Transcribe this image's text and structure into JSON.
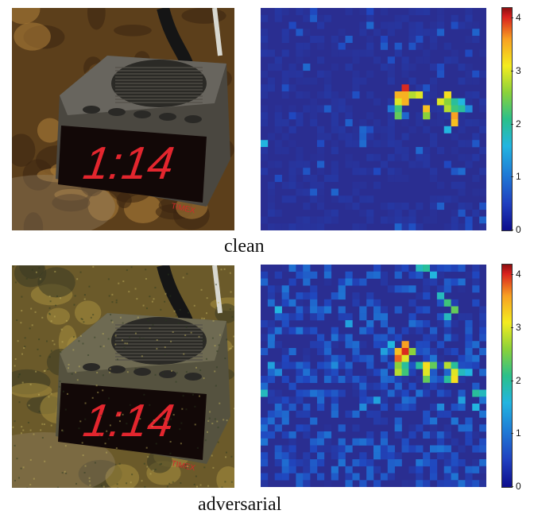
{
  "panels": [
    {
      "caption": "clean",
      "clock_display": "1:14",
      "brand": "TIMEX",
      "colorbar_ticks": [
        "4",
        "3",
        "2",
        "1",
        "0"
      ],
      "heat_cells": [
        [
          20,
          11,
          4.0
        ],
        [
          20,
          12,
          3.5
        ],
        [
          19,
          12,
          3.5
        ],
        [
          21,
          12,
          2.8
        ],
        [
          19,
          13,
          3.0
        ],
        [
          20,
          13,
          3.5
        ],
        [
          19,
          14,
          2.2
        ],
        [
          19,
          15,
          2.4
        ],
        [
          22,
          12,
          3.0
        ],
        [
          26,
          12,
          3.2
        ],
        [
          25,
          13,
          3.0
        ],
        [
          26,
          13,
          2.6
        ],
        [
          27,
          13,
          2.0
        ],
        [
          28,
          13,
          1.6
        ],
        [
          23,
          14,
          3.4
        ],
        [
          26,
          14,
          2.8
        ],
        [
          27,
          14,
          2.2
        ],
        [
          28,
          14,
          2.0
        ],
        [
          23,
          15,
          2.6
        ],
        [
          27,
          15,
          3.6
        ],
        [
          27,
          16,
          3.4
        ],
        [
          26,
          17,
          1.6
        ],
        [
          0,
          19,
          1.6
        ],
        [
          18,
          14,
          1.0
        ],
        [
          29,
          14,
          1.2
        ],
        [
          5,
          3,
          0.7
        ],
        [
          3,
          11,
          0.6
        ],
        [
          13,
          12,
          0.6
        ],
        [
          17,
          4,
          0.5
        ],
        [
          30,
          9,
          0.6
        ]
      ],
      "heat_noise": 0.2,
      "photo_variant": "clean"
    },
    {
      "caption": "adversarial",
      "clock_display": "1:14",
      "brand": "TIMEX",
      "colorbar_ticks": [
        "4",
        "3",
        "2",
        "1",
        "0"
      ],
      "heat_cells": [
        [
          20,
          11,
          3.6
        ],
        [
          20,
          12,
          4.0
        ],
        [
          19,
          12,
          3.4
        ],
        [
          21,
          12,
          2.6
        ],
        [
          19,
          13,
          3.8
        ],
        [
          20,
          13,
          3.0
        ],
        [
          19,
          14,
          2.6
        ],
        [
          20,
          14,
          2.0
        ],
        [
          19,
          15,
          2.8
        ],
        [
          20,
          15,
          2.2
        ],
        [
          22,
          14,
          2.0
        ],
        [
          23,
          14,
          3.2
        ],
        [
          24,
          14,
          2.4
        ],
        [
          26,
          14,
          2.8
        ],
        [
          27,
          14,
          2.0
        ],
        [
          23,
          15,
          3.0
        ],
        [
          27,
          15,
          3.0
        ],
        [
          28,
          15,
          1.8
        ],
        [
          29,
          15,
          1.6
        ],
        [
          26,
          16,
          2.0
        ],
        [
          27,
          16,
          3.2
        ],
        [
          23,
          16,
          2.4
        ],
        [
          0,
          18,
          1.8
        ],
        [
          2,
          6,
          1.6
        ],
        [
          22,
          0,
          1.8
        ],
        [
          23,
          0,
          2.0
        ],
        [
          24,
          1,
          1.6
        ],
        [
          25,
          4,
          1.8
        ],
        [
          26,
          5,
          2.2
        ],
        [
          27,
          6,
          2.4
        ],
        [
          26,
          7,
          1.8
        ],
        [
          12,
          8,
          1.4
        ],
        [
          17,
          12,
          1.4
        ],
        [
          18,
          11,
          1.6
        ],
        [
          10,
          14,
          1.2
        ],
        [
          1,
          14,
          1.4
        ],
        [
          2,
          15,
          1.2
        ],
        [
          30,
          18,
          2.0
        ],
        [
          31,
          18,
          1.8
        ],
        [
          16,
          19,
          1.4
        ],
        [
          14,
          20,
          1.2
        ],
        [
          30,
          20,
          1.6
        ],
        [
          28,
          19,
          1.4
        ],
        [
          25,
          20,
          1.2
        ]
      ],
      "heat_noise": 1.0,
      "photo_variant": "adversarial"
    }
  ]
}
